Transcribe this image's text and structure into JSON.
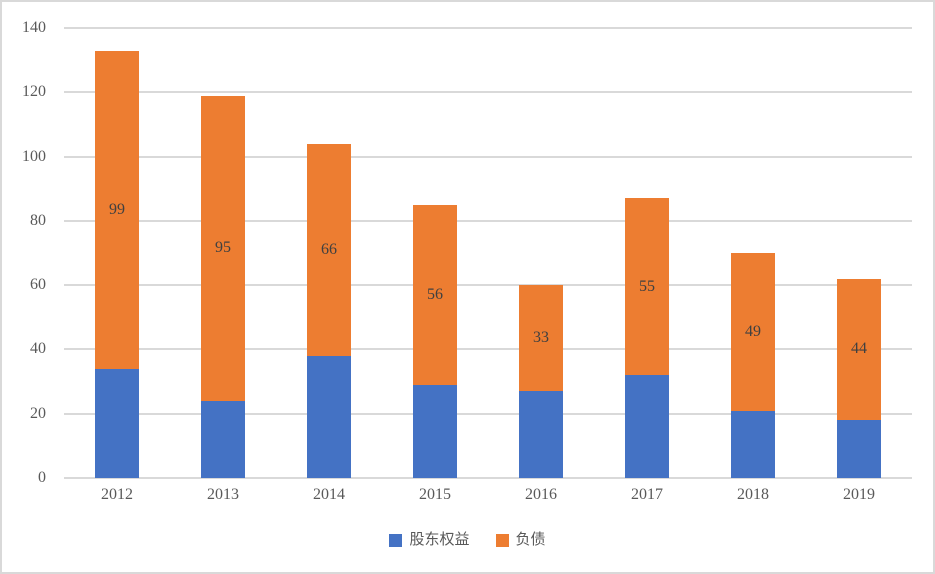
{
  "chart_data": {
    "type": "bar",
    "stacked": true,
    "title": "",
    "xlabel": "",
    "ylabel": "",
    "categories": [
      "2012",
      "2013",
      "2014",
      "2015",
      "2016",
      "2017",
      "2018",
      "2019"
    ],
    "series": [
      {
        "name": "股东权益",
        "color": "#4472C4",
        "values": [
          34,
          24,
          38,
          29,
          27,
          32,
          21,
          18
        ],
        "labels_visible": false
      },
      {
        "name": "负债",
        "color": "#ED7D31",
        "values": [
          99,
          95,
          66,
          56,
          33,
          55,
          49,
          44
        ],
        "labels_visible": true
      }
    ],
    "totals": [
      133,
      119,
      104,
      85,
      60,
      87,
      70,
      62
    ],
    "ylim": [
      0,
      140
    ],
    "yticks": [
      0,
      20,
      40,
      60,
      80,
      100,
      120,
      140
    ],
    "grid": true,
    "legend_position": "bottom"
  },
  "colors": {
    "gridline": "#D9D9D9",
    "axis_text": "#595959",
    "data_label": "#404040",
    "frame_border": "#D9D9D9",
    "background": "#FFFFFF"
  }
}
